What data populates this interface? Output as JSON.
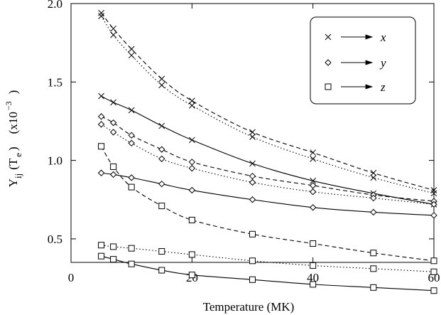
{
  "chart_data": {
    "type": "line",
    "title": "",
    "xlabel": "Temperature    (MK)",
    "ylabel": {
      "main": "Y",
      "sub1": "ij",
      "paren": "(T",
      "sub2": "e",
      "paren_close": ")",
      "units": "(x10",
      "exp": "−3",
      "units_close": ")"
    },
    "xlim": [
      0,
      60
    ],
    "ylim": [
      0.35,
      2.0
    ],
    "xticks": [
      0,
      20,
      40,
      60
    ],
    "xtick_labels": [
      "0",
      "20",
      "40",
      "60"
    ],
    "yticks": [
      0.5,
      1.0,
      1.5,
      2.0
    ],
    "ytick_labels": [
      "0.5",
      "1.0",
      "1.5",
      "2.0"
    ],
    "grid": false,
    "legend": {
      "position": "top-right",
      "entries": [
        {
          "marker": "x",
          "label": "x"
        },
        {
          "marker": "diamond",
          "label": "y"
        },
        {
          "marker": "square",
          "label": "z"
        }
      ]
    },
    "series": [
      {
        "component": "x",
        "line": "dashed",
        "marker": "x",
        "x": [
          5,
          7,
          10,
          15,
          20,
          30,
          40,
          50,
          60
        ],
        "y": [
          1.94,
          1.84,
          1.71,
          1.52,
          1.38,
          1.18,
          1.05,
          0.92,
          0.81
        ]
      },
      {
        "component": "x",
        "line": "dotted",
        "marker": "x",
        "x": [
          5,
          7,
          10,
          15,
          20,
          30,
          40,
          50,
          60
        ],
        "y": [
          1.92,
          1.8,
          1.67,
          1.48,
          1.35,
          1.15,
          1.01,
          0.89,
          0.79
        ]
      },
      {
        "component": "x",
        "line": "solid",
        "marker": "x",
        "x": [
          5,
          7,
          10,
          15,
          20,
          30,
          40,
          50,
          60
        ],
        "y": [
          1.41,
          1.37,
          1.32,
          1.22,
          1.13,
          0.98,
          0.87,
          0.79,
          0.72
        ]
      },
      {
        "component": "y",
        "line": "dashed",
        "marker": "diamond",
        "x": [
          5,
          7,
          10,
          15,
          20,
          30,
          40,
          50,
          60
        ],
        "y": [
          1.28,
          1.24,
          1.16,
          1.07,
          0.99,
          0.9,
          0.84,
          0.78,
          0.74
        ]
      },
      {
        "component": "y",
        "line": "dotted",
        "marker": "diamond",
        "x": [
          5,
          7,
          10,
          15,
          20,
          30,
          40,
          50,
          60
        ],
        "y": [
          1.23,
          1.18,
          1.11,
          1.01,
          0.95,
          0.86,
          0.8,
          0.76,
          0.72
        ]
      },
      {
        "component": "y",
        "line": "solid",
        "marker": "diamond",
        "x": [
          5,
          7,
          10,
          15,
          20,
          30,
          40,
          50,
          60
        ],
        "y": [
          0.92,
          0.91,
          0.89,
          0.85,
          0.81,
          0.75,
          0.7,
          0.67,
          0.65
        ]
      },
      {
        "component": "z",
        "line": "dashed",
        "marker": "square",
        "x": [
          5,
          7,
          10,
          15,
          20,
          30,
          40,
          50,
          60
        ],
        "y": [
          1.09,
          0.96,
          0.83,
          0.71,
          0.62,
          0.53,
          0.47,
          0.41,
          0.36
        ]
      },
      {
        "component": "z",
        "line": "dotted",
        "marker": "square",
        "x": [
          5,
          7,
          10,
          15,
          20,
          30,
          40,
          50,
          60
        ],
        "y": [
          0.46,
          0.45,
          0.44,
          0.42,
          0.4,
          0.36,
          0.33,
          0.31,
          0.29
        ]
      },
      {
        "component": "z",
        "line": "solid",
        "marker": "square",
        "x": [
          5,
          7,
          10,
          15,
          20,
          30,
          40,
          50,
          60
        ],
        "y": [
          0.39,
          0.37,
          0.34,
          0.3,
          0.27,
          0.24,
          0.21,
          0.19,
          0.17
        ]
      }
    ]
  }
}
